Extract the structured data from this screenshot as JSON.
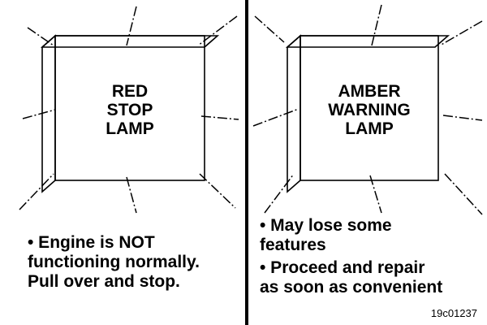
{
  "panels": [
    {
      "lamp_lines": [
        "RED",
        "STOP",
        "LAMP"
      ],
      "notes": [
        "• Engine is NOT",
        "functioning normally.",
        "Pull over and stop."
      ]
    },
    {
      "lamp_lines": [
        "AMBER",
        "WARNING",
        "LAMP"
      ],
      "notes": [
        "• May lose some",
        "features",
        "• Proceed and repair",
        "as soon as convenient"
      ]
    }
  ],
  "figure_id": "19c01237"
}
